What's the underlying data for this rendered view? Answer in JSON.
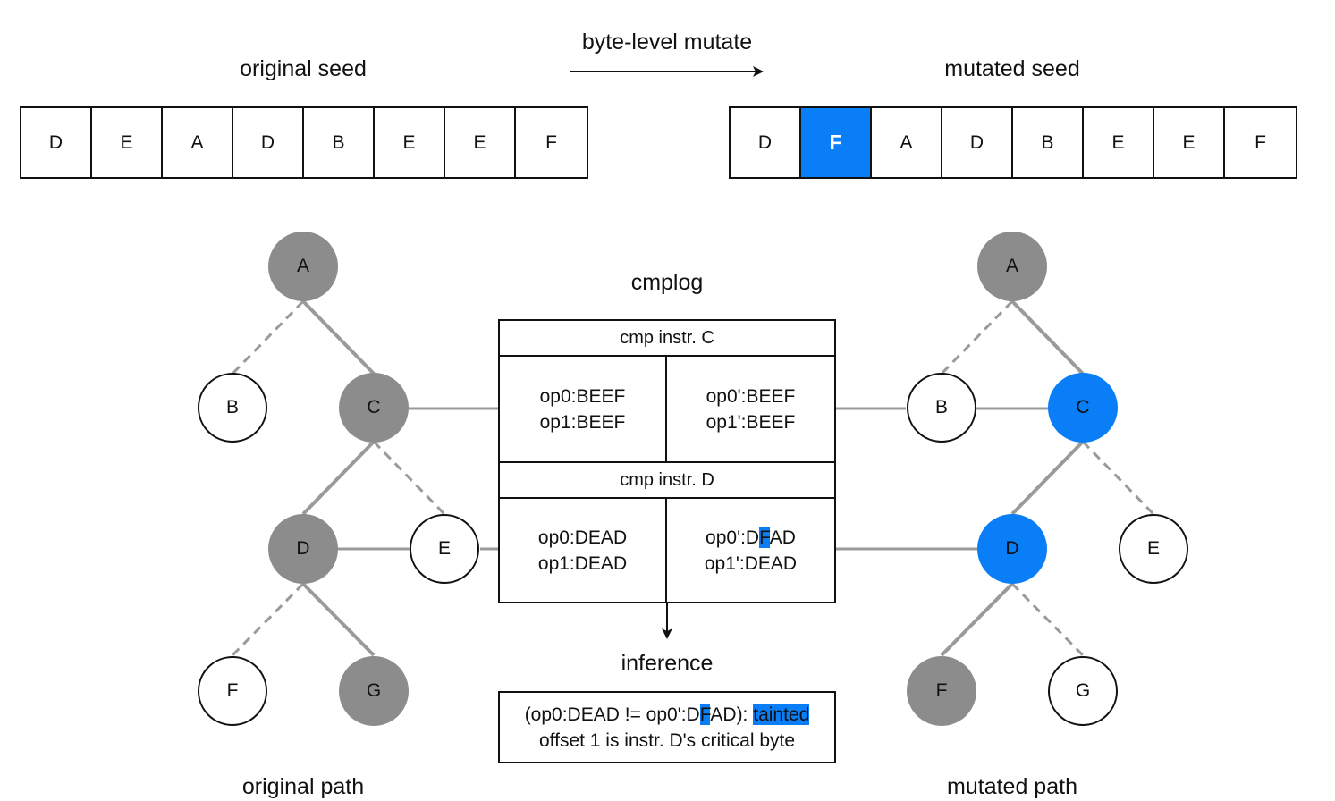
{
  "arrow_label": "byte-level mutate",
  "original_seed": {
    "title": "original seed",
    "bytes": [
      "D",
      "E",
      "A",
      "D",
      "B",
      "E",
      "E",
      "F"
    ]
  },
  "mutated_seed": {
    "title": "mutated seed",
    "bytes": [
      "D",
      "F",
      "A",
      "D",
      "B",
      "E",
      "E",
      "F"
    ],
    "highlight_index": 1
  },
  "cmplog": {
    "title": "cmplog",
    "instr_c": {
      "header": "cmp instr. C",
      "left": [
        "op0:BEEF",
        "op1:BEEF"
      ],
      "right": [
        "op0':BEEF",
        "op1':BEEF"
      ]
    },
    "instr_d": {
      "header": "cmp instr. D",
      "left": [
        "op0:DEAD",
        "op1:DEAD"
      ],
      "right_line1": {
        "pre": "op0':D",
        "hl": "F",
        "post": "AD"
      },
      "right_line2": "op1':DEAD"
    }
  },
  "inference": {
    "title": "inference",
    "line1": {
      "pre": "(op0:DEAD != op0':D",
      "hl": "F",
      "mid": "AD): ",
      "tag": "tainted"
    },
    "line2": "offset 1 is instr. D's critical byte"
  },
  "original_path": {
    "caption": "original path",
    "nodes": {
      "A": {
        "label": "A",
        "state": "gray"
      },
      "B": {
        "label": "B",
        "state": "white"
      },
      "C": {
        "label": "C",
        "state": "gray"
      },
      "D": {
        "label": "D",
        "state": "gray"
      },
      "E": {
        "label": "E",
        "state": "white"
      },
      "F": {
        "label": "F",
        "state": "white"
      },
      "G": {
        "label": "G",
        "state": "gray"
      }
    }
  },
  "mutated_path": {
    "caption": "mutated path",
    "nodes": {
      "A": {
        "label": "A",
        "state": "gray"
      },
      "B": {
        "label": "B",
        "state": "white"
      },
      "C": {
        "label": "C",
        "state": "blue"
      },
      "D": {
        "label": "D",
        "state": "blue"
      },
      "E": {
        "label": "E",
        "state": "white"
      },
      "F": {
        "label": "F",
        "state": "gray"
      },
      "G": {
        "label": "G",
        "state": "white"
      }
    }
  },
  "colors": {
    "highlight": "#0a7ef7",
    "visited_node": "#8c8c8c",
    "edge": "#9a9a9a"
  }
}
